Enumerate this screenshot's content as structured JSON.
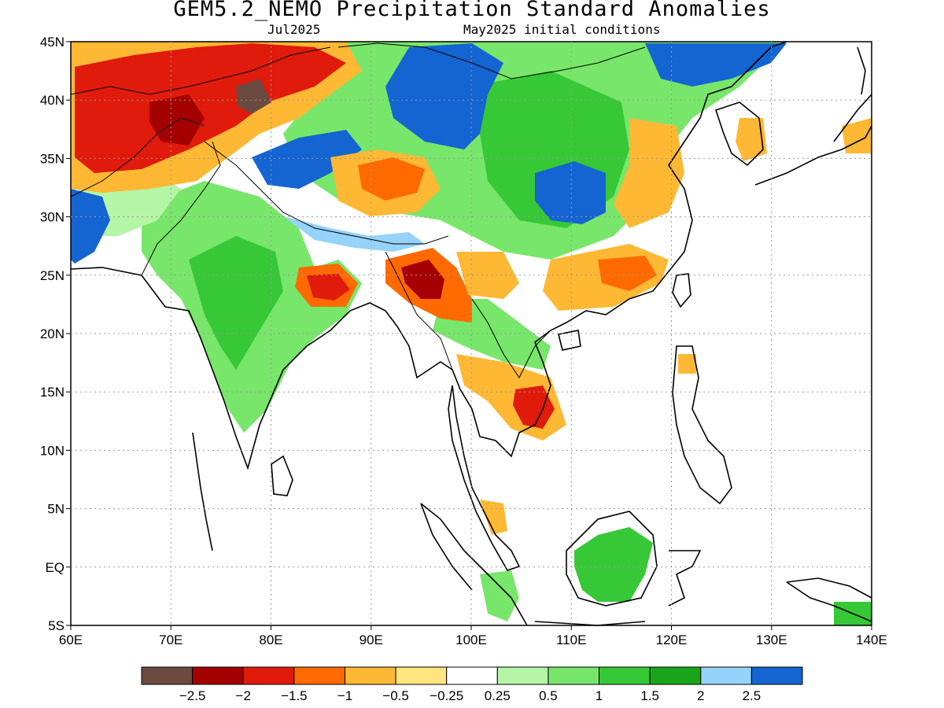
{
  "title": "GEM5.2_NEMO Precipitation Standard Anomalies",
  "subtitle_left": "Jul2025",
  "subtitle_right": "May2025 initial conditions",
  "map": {
    "lon_range": [
      60,
      140
    ],
    "lat_range": [
      -5,
      45
    ],
    "lat_ticks": [
      {
        "value": 45,
        "label": "45N"
      },
      {
        "value": 40,
        "label": "40N"
      },
      {
        "value": 35,
        "label": "35N"
      },
      {
        "value": 30,
        "label": "30N"
      },
      {
        "value": 25,
        "label": "25N"
      },
      {
        "value": 20,
        "label": "20N"
      },
      {
        "value": 15,
        "label": "15N"
      },
      {
        "value": 10,
        "label": "10N"
      },
      {
        "value": 5,
        "label": "5N"
      },
      {
        "value": 0,
        "label": "EQ"
      },
      {
        "value": -5,
        "label": "5S"
      }
    ],
    "lon_ticks": [
      {
        "value": 60,
        "label": "60E"
      },
      {
        "value": 70,
        "label": "70E"
      },
      {
        "value": 80,
        "label": "80E"
      },
      {
        "value": 90,
        "label": "90E"
      },
      {
        "value": 100,
        "label": "100E"
      },
      {
        "value": 110,
        "label": "110E"
      },
      {
        "value": 120,
        "label": "120E"
      },
      {
        "value": 130,
        "label": "130E"
      },
      {
        "value": 140,
        "label": "140E"
      }
    ],
    "gridlines": "dotted"
  },
  "legend": {
    "colors": [
      "#6b4a40",
      "#a50000",
      "#e01b0b",
      "#ff6a00",
      "#ffb833",
      "#ffe680",
      "#ffffff",
      "#b4f5a6",
      "#78e66a",
      "#36c836",
      "#19a519",
      "#96d2fa",
      "#1464d2"
    ],
    "labels": [
      "−2.5",
      "−2",
      "−1.5",
      "−1",
      "−0.5",
      "−0.25",
      "0.25",
      "0.5",
      "1",
      "1.5",
      "2",
      "2.5"
    ]
  }
}
